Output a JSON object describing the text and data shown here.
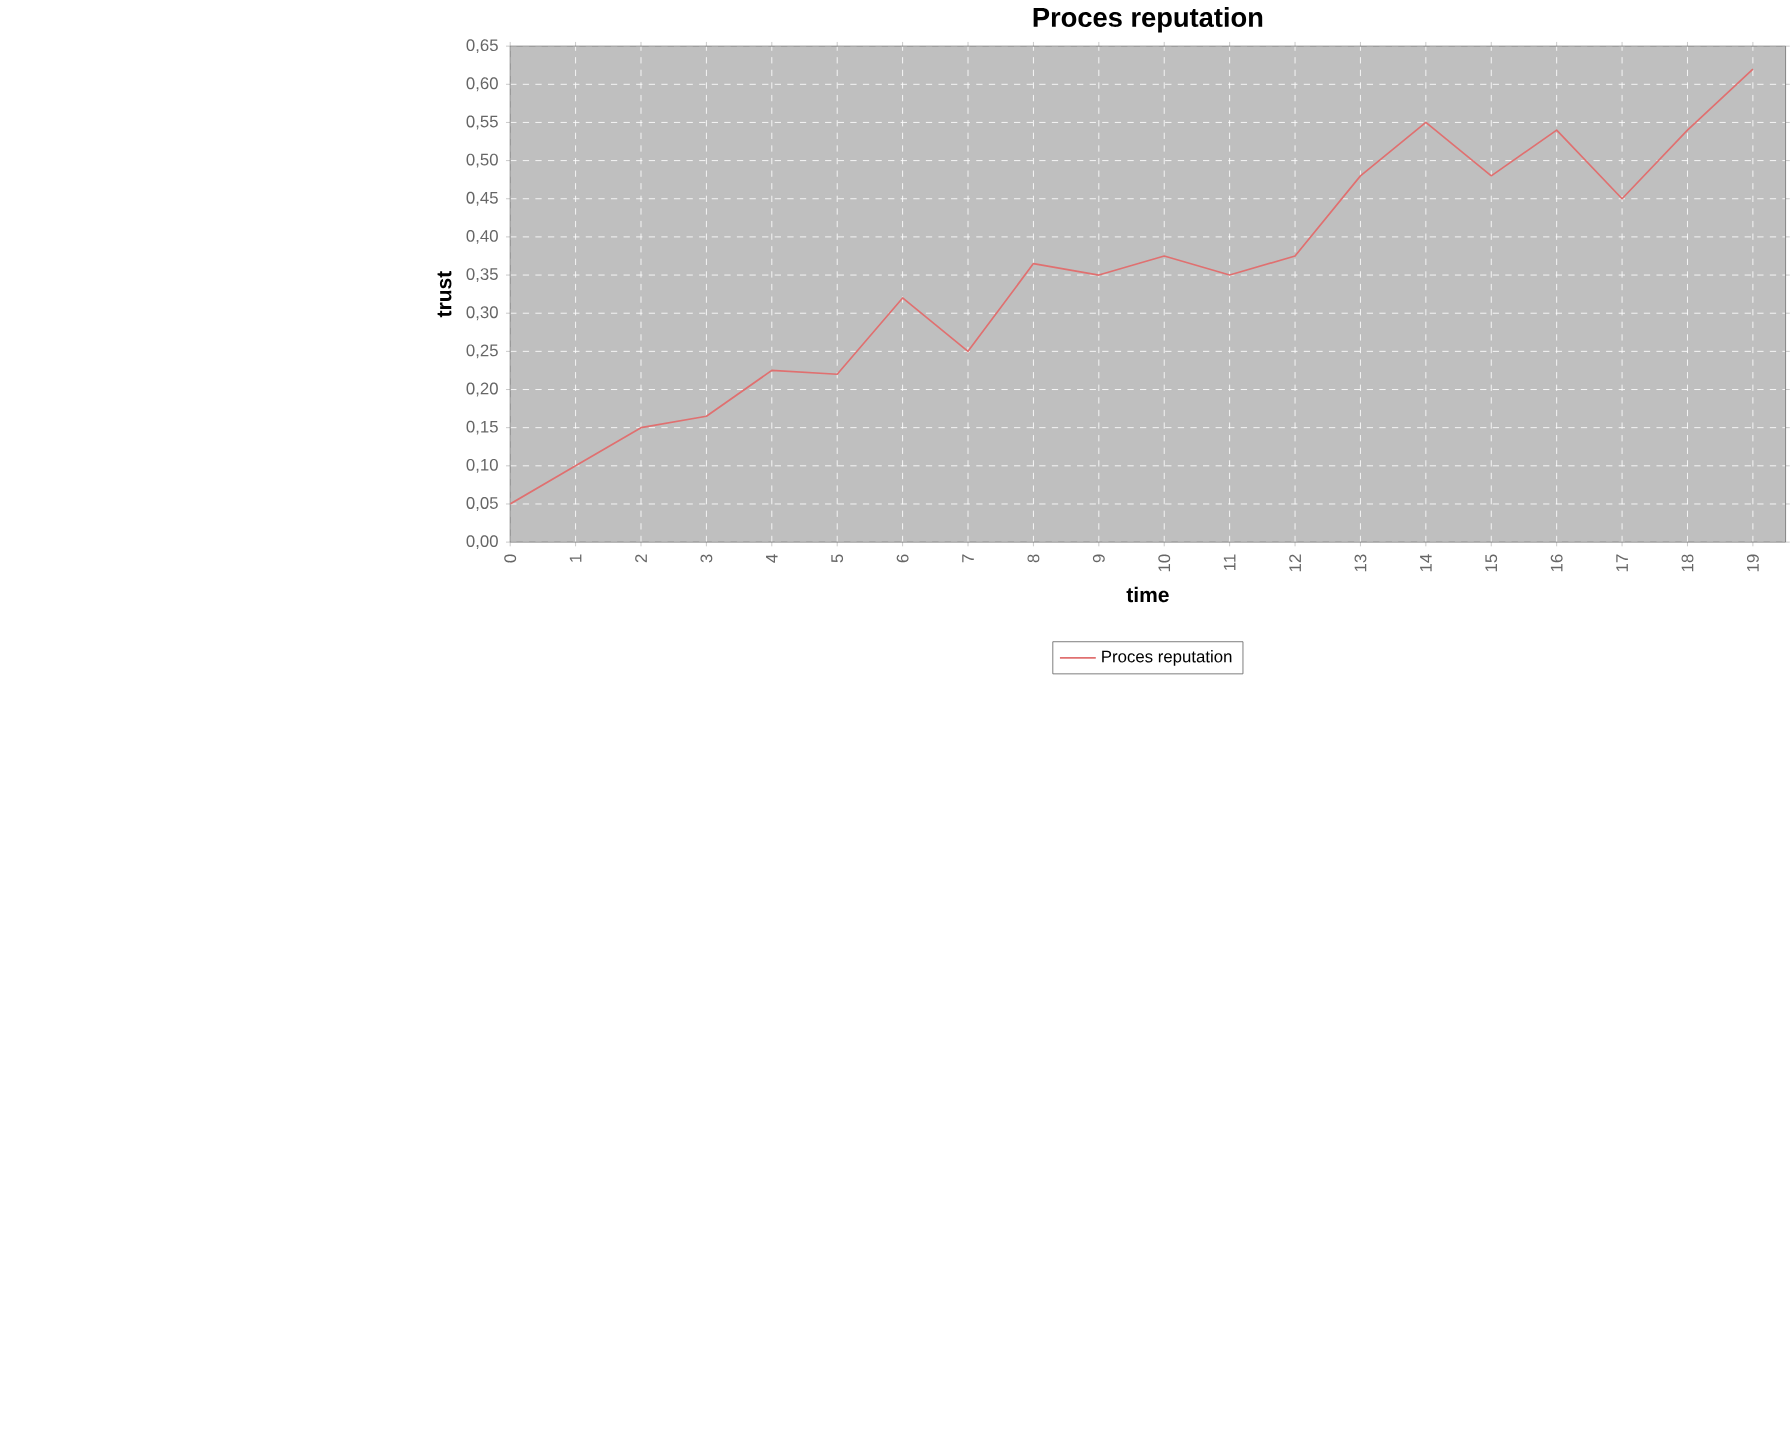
{
  "chart_data": {
    "type": "line",
    "title": "Proces reputation",
    "xlabel": "time",
    "ylabel": "trust",
    "x": [
      0,
      1,
      2,
      3,
      4,
      5,
      6,
      7,
      8,
      9,
      10,
      11,
      12,
      13,
      14,
      15,
      16,
      17,
      18,
      19
    ],
    "series": [
      {
        "name": "Proces reputation",
        "color": "#e07070",
        "values": [
          0.05,
          0.1,
          0.15,
          0.165,
          0.225,
          0.22,
          0.32,
          0.25,
          0.365,
          0.35,
          0.375,
          0.35,
          0.375,
          0.48,
          0.55,
          0.48,
          0.54,
          0.45,
          0.54,
          0.62
        ]
      }
    ],
    "xlim": [
      0,
      19.5
    ],
    "xticks": [
      0,
      1,
      2,
      3,
      4,
      5,
      6,
      7,
      8,
      9,
      10,
      11,
      12,
      13,
      14,
      15,
      16,
      17,
      18,
      19
    ],
    "ylim": [
      0,
      0.65
    ],
    "yticks": [
      {
        "value": 0,
        "label": "0,00"
      },
      {
        "value": 0.05,
        "label": "0,05"
      },
      {
        "value": 0.1,
        "label": "0,10"
      },
      {
        "value": 0.15,
        "label": "0,15"
      },
      {
        "value": 0.2,
        "label": "0,20"
      },
      {
        "value": 0.25,
        "label": "0,25"
      },
      {
        "value": 0.3,
        "label": "0,30"
      },
      {
        "value": 0.35,
        "label": "0,35"
      },
      {
        "value": 0.4,
        "label": "0,40"
      },
      {
        "value": 0.45,
        "label": "0,45"
      },
      {
        "value": 0.5,
        "label": "0,50"
      },
      {
        "value": 0.55,
        "label": "0,55"
      },
      {
        "value": 0.6,
        "label": "0,60"
      },
      {
        "value": 0.65,
        "label": "0,65"
      }
    ],
    "grid": true,
    "legend": "bottom",
    "line_style": "solid"
  }
}
